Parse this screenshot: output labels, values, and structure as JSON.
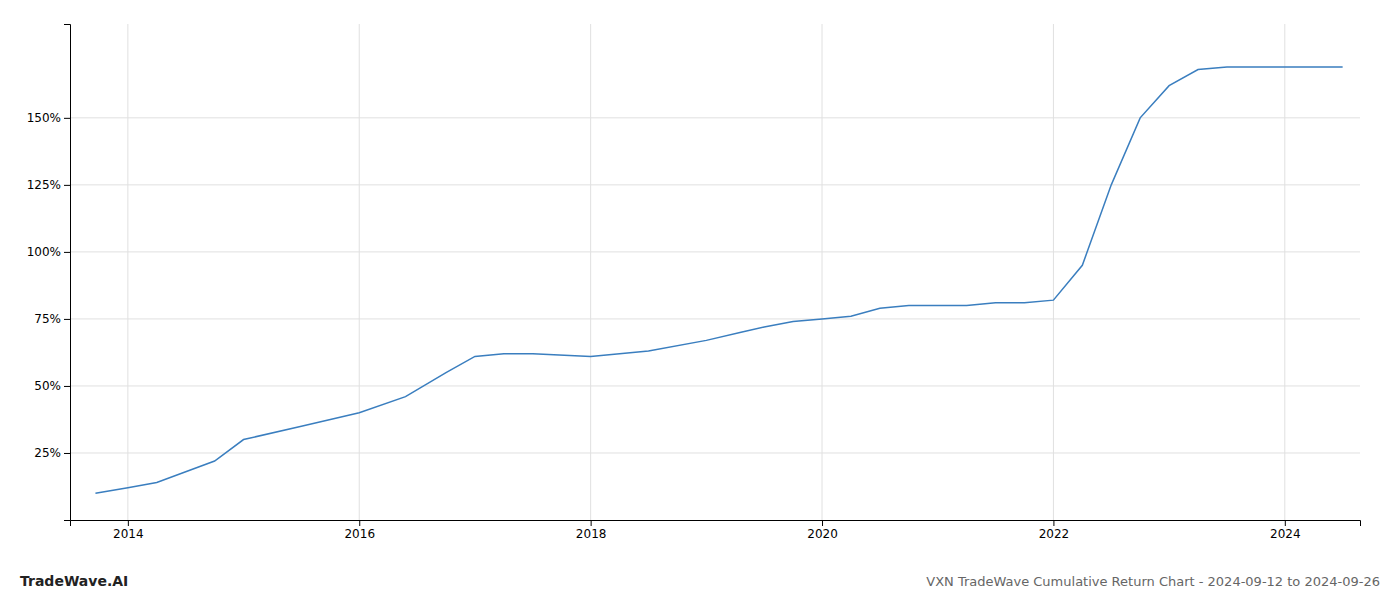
{
  "chart_data": {
    "type": "line",
    "title": "VXN TradeWave Cumulative Return Chart - 2024-09-12 to 2024-09-26",
    "annotations": [
      "TradeWave.AI"
    ],
    "x": [
      2013.72,
      2014.0,
      2014.25,
      2014.75,
      2015.0,
      2015.5,
      2016.0,
      2016.4,
      2016.75,
      2017.0,
      2017.25,
      2017.5,
      2018.0,
      2018.25,
      2018.5,
      2019.0,
      2019.3,
      2019.5,
      2019.75,
      2020.0,
      2020.25,
      2020.5,
      2020.75,
      2021.0,
      2021.25,
      2021.5,
      2021.75,
      2022.0,
      2022.25,
      2022.5,
      2022.75,
      2023.0,
      2023.25,
      2023.5,
      2023.75,
      2024.0,
      2024.25,
      2024.5
    ],
    "values": [
      10,
      12,
      14,
      22,
      30,
      35,
      40,
      46,
      55,
      61,
      62,
      62,
      61,
      62,
      63,
      67,
      70,
      72,
      74,
      75,
      76,
      79,
      80,
      80,
      80,
      81,
      81,
      82,
      95,
      125,
      150,
      162,
      168,
      169,
      169,
      169,
      169,
      169
    ],
    "color": "#3a7ebf",
    "xlim": [
      2013.5,
      2024.65
    ],
    "ylim": [
      0,
      185
    ],
    "xticks": [
      2014,
      2016,
      2018,
      2020,
      2022,
      2024
    ],
    "yticks": [
      {
        "value": 25,
        "label": "25%"
      },
      {
        "value": 50,
        "label": "50%"
      },
      {
        "value": 75,
        "label": "75%"
      },
      {
        "value": 100,
        "label": "100%"
      },
      {
        "value": 125,
        "label": "125%"
      },
      {
        "value": 150,
        "label": "150%"
      }
    ],
    "grid": true
  }
}
